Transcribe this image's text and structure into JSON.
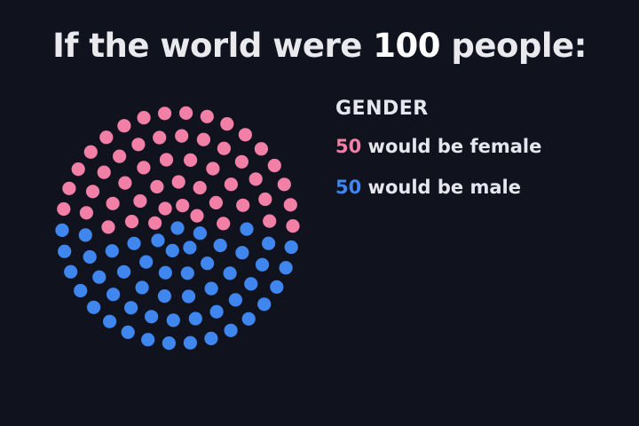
{
  "header": {
    "title_prefix": "If the world were",
    "title_number": "100",
    "title_suffix": "people:"
  },
  "legend": {
    "heading": "GENDER",
    "female": {
      "count": "50",
      "label": "would be female"
    },
    "male": {
      "count": "50",
      "label": "would be male"
    }
  },
  "colors": {
    "background": "#10121e",
    "female": "#f27fa6",
    "male": "#3f86ee",
    "text": "#e6e6ee"
  },
  "chart_data": {
    "type": "unit-dot",
    "title": "If the world were 100 people:",
    "total": 100,
    "categories": [
      "female",
      "male"
    ],
    "values": [
      50,
      50
    ],
    "series": [
      {
        "name": "would be female",
        "value": 50,
        "color": "#f27fa6"
      },
      {
        "name": "would be male",
        "value": 50,
        "color": "#3f86ee"
      }
    ],
    "legend_heading": "GENDER",
    "legend_position": "right"
  }
}
